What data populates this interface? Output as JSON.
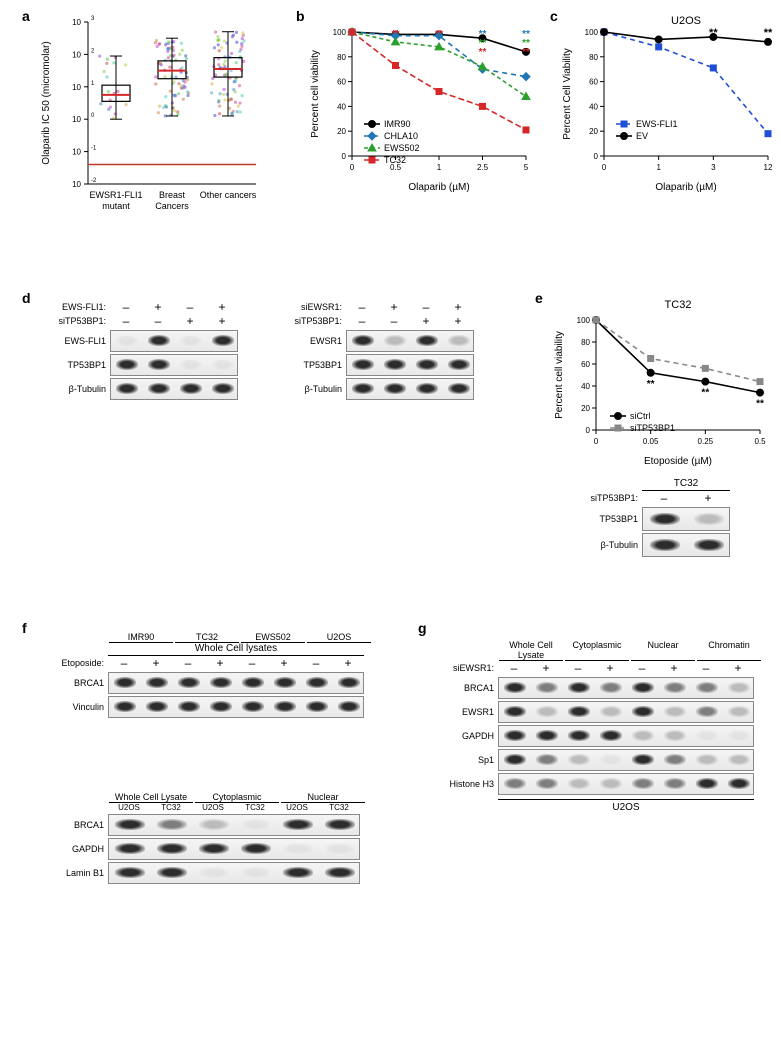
{
  "panelA": {
    "label": "a",
    "ylabel": "Olaparib IC 50 (micromolar)",
    "categories": [
      "EWSR1-FLI1\nmutant",
      "Breast\nCancers",
      "Other cancers"
    ],
    "ylog_min": -2,
    "ylog_max": 3,
    "boxes": [
      {
        "q1": 0.55,
        "med_log": 0.75,
        "q3": 1.05,
        "wlo": 0.0,
        "whi": 1.95
      },
      {
        "q1": 1.25,
        "med_log": 1.5,
        "q3": 1.8,
        "wlo": 0.1,
        "whi": 2.5
      },
      {
        "q1": 1.3,
        "med_log": 1.55,
        "q3": 1.9,
        "wlo": 0.1,
        "whi": 2.7
      }
    ],
    "box_stroke": "#000000",
    "med_color": "#d62728"
  },
  "panelB": {
    "label": "b",
    "xlabel": "Olaparib (µM)",
    "ylabel": "Percent cell viability",
    "xvals": [
      0,
      0.5,
      1,
      2.5,
      5
    ],
    "yticks": [
      0,
      20,
      40,
      60,
      80,
      100
    ],
    "series": [
      {
        "name": "IMR90",
        "color": "#000000",
        "marker": "circle",
        "dash": "0",
        "y": [
          100,
          98,
          98,
          95,
          84
        ]
      },
      {
        "name": "CHLA10",
        "color": "#1f77b4",
        "marker": "diamond",
        "dash": "5,4",
        "y": [
          100,
          97,
          97,
          70,
          64
        ]
      },
      {
        "name": "EWS502",
        "color": "#2ca02c",
        "marker": "triangle",
        "dash": "4,3",
        "y": [
          100,
          92,
          88,
          72,
          48
        ]
      },
      {
        "name": "TC32",
        "color": "#d62728",
        "marker": "square",
        "dash": "6,3",
        "y": [
          100,
          73,
          52,
          40,
          21
        ]
      }
    ],
    "stars": [
      {
        "x": 0.5,
        "colors": [
          "#d62728"
        ]
      },
      {
        "x": 1,
        "colors": [
          "#d62728"
        ]
      },
      {
        "x": 2.5,
        "colors": [
          "#1f77b4",
          "#2ca02c",
          "#d62728"
        ]
      },
      {
        "x": 5,
        "colors": [
          "#1f77b4",
          "#2ca02c",
          "#d62728"
        ]
      }
    ]
  },
  "panelC": {
    "label": "c",
    "title": "U2OS",
    "xlabel": "Olaparib (µM)",
    "ylabel": "Percent Cell Viability",
    "xvals": [
      0,
      1,
      3,
      12
    ],
    "yticks": [
      0,
      20,
      40,
      60,
      80,
      100
    ],
    "series": [
      {
        "name": "EWS-FLI1",
        "color": "#1f4fd6",
        "marker": "square",
        "dash": "5,4",
        "y": [
          100,
          88,
          71,
          18
        ]
      },
      {
        "name": "EV",
        "color": "#000000",
        "marker": "circle",
        "dash": "0",
        "y": [
          100,
          94,
          96,
          92
        ]
      }
    ],
    "stars_x": [
      3,
      12
    ]
  },
  "panelD": {
    "label": "d",
    "left": {
      "rows": [
        "EWS-FLI1:",
        "siTP53BP1:"
      ],
      "cols": [
        [
          "–",
          "+",
          "–",
          "+"
        ],
        [
          "–",
          "–",
          "+",
          "+"
        ]
      ],
      "proteins": [
        "EWS-FLI1",
        "TP53BP1",
        "β-Tubulin"
      ],
      "intens": [
        [
          0,
          1,
          0,
          0.9
        ],
        [
          1,
          1,
          0.05,
          0.05
        ],
        [
          1,
          1,
          1,
          1
        ]
      ]
    },
    "right": {
      "rows": [
        "siEWSR1:",
        "siTP53BP1:"
      ],
      "cols": [
        [
          "–",
          "+",
          "–",
          "+"
        ],
        [
          "–",
          "–",
          "+",
          "+"
        ]
      ],
      "proteins": [
        "EWSR1",
        "TP53BP1",
        "β-Tubulin"
      ],
      "intens": [
        [
          1,
          0.15,
          1,
          0.15
        ],
        [
          1,
          1,
          0.9,
          0.9
        ],
        [
          1,
          1,
          1,
          1
        ]
      ]
    }
  },
  "panelE": {
    "label": "e",
    "title": "TC32",
    "xlabel": "Etoposide (µM)",
    "ylabel": "Percent cell viability",
    "xvals": [
      0,
      0.05,
      0.25,
      0.5
    ],
    "yticks": [
      0,
      20,
      40,
      60,
      80,
      100
    ],
    "series": [
      {
        "name": "siCtrl",
        "color": "#000000",
        "marker": "circle",
        "dash": "0",
        "y": [
          100,
          52,
          44,
          34
        ]
      },
      {
        "name": "siTP53BP1",
        "color": "#888888",
        "marker": "square",
        "dash": "5,4",
        "y": [
          100,
          65,
          56,
          44
        ]
      }
    ],
    "stars_x": [
      0.05,
      0.25,
      0.5
    ],
    "blot": {
      "header": "TC32",
      "row": "siTP53BP1:",
      "cols": [
        "–",
        "+"
      ],
      "proteins": [
        "TP53BP1",
        "β-Tubulin"
      ],
      "intens": [
        [
          1,
          0.1
        ],
        [
          1,
          1
        ]
      ]
    }
  },
  "panelF": {
    "label": "f",
    "top": {
      "title": "Whole Cell lysates",
      "row": "Etoposide:",
      "groups": [
        "IMR90",
        "TC32",
        "EWS502",
        "U2OS"
      ],
      "cols": [
        "–",
        "+",
        "–",
        "+",
        "–",
        "+",
        "–",
        "+"
      ],
      "proteins": [
        "BRCA1",
        "Vinculin"
      ],
      "intens": [
        [
          1,
          1,
          0.9,
          0.9,
          0.95,
          0.95,
          1,
          1
        ],
        [
          1,
          1,
          0.9,
          0.9,
          0.9,
          0.9,
          1,
          1
        ]
      ]
    },
    "bottom": {
      "groups": [
        "Whole Cell Lysate",
        "Cytoplasmic",
        "Nuclear"
      ],
      "subcols": [
        "U2OS",
        "TC32",
        "U2OS",
        "TC32",
        "U2OS",
        "TC32"
      ],
      "proteins": [
        "BRCA1",
        "GAPDH",
        "Lamin B1"
      ],
      "intens": [
        [
          0.9,
          0.6,
          0.1,
          0.05,
          1,
          1
        ],
        [
          1,
          0.9,
          1,
          0.9,
          0.05,
          0.05
        ],
        [
          1,
          0.9,
          0.05,
          0.05,
          1,
          1
        ]
      ]
    }
  },
  "panelG": {
    "label": "g",
    "row": "siEWSR1:",
    "groups": [
      "Whole Cell\nLysate",
      "Cytoplasmic",
      "Nuclear",
      "Chromatin"
    ],
    "cols": [
      "–",
      "+",
      "–",
      "+",
      "–",
      "+",
      "–",
      "+"
    ],
    "proteins": [
      "BRCA1",
      "EWSR1",
      "GAPDH",
      "Sp1",
      "Histone H3"
    ],
    "intens": [
      [
        0.8,
        0.5,
        0.7,
        0.5,
        0.9,
        0.5,
        0.4,
        0.15
      ],
      [
        1,
        0.15,
        1,
        0.15,
        1,
        0.15,
        0.5,
        0.1
      ],
      [
        1,
        0.9,
        1,
        0.9,
        0.1,
        0.1,
        0.05,
        0.05
      ],
      [
        0.9,
        0.4,
        0.1,
        0.05,
        1,
        0.5,
        0.2,
        0.1
      ],
      [
        0.3,
        0.3,
        0.1,
        0.1,
        0.4,
        0.4,
        1,
        1
      ]
    ],
    "footer": "U2OS"
  }
}
